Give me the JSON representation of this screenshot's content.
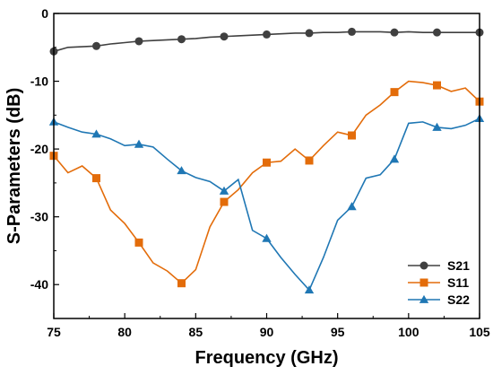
{
  "chart_data": {
    "type": "line",
    "title": "",
    "xlabel": "Frequency (GHz)",
    "ylabel": "S-Parameters (dB)",
    "xlim": [
      75,
      105
    ],
    "ylim": [
      -45,
      0
    ],
    "x_ticks": [
      "75",
      "80",
      "85",
      "90",
      "95",
      "100",
      "105"
    ],
    "y_ticks": [
      "0",
      "-10",
      "-20",
      "-30",
      "-40"
    ],
    "grid": false,
    "legend_position": "bottom-right",
    "series": [
      {
        "name": "S21",
        "color": "#404040",
        "marker": "circle",
        "x": [
          75,
          76,
          77,
          78,
          79,
          80,
          81,
          82,
          83,
          84,
          85,
          86,
          87,
          88,
          89,
          90,
          91,
          92,
          93,
          94,
          95,
          96,
          97,
          98,
          99,
          100,
          101,
          102,
          103,
          104,
          105
        ],
        "y": [
          -5.6,
          -5.0,
          -4.9,
          -4.8,
          -4.5,
          -4.3,
          -4.1,
          -4.0,
          -3.9,
          -3.8,
          -3.7,
          -3.5,
          -3.4,
          -3.3,
          -3.2,
          -3.1,
          -3.0,
          -2.9,
          -2.9,
          -2.8,
          -2.8,
          -2.7,
          -2.7,
          -2.7,
          -2.8,
          -2.7,
          -2.8,
          -2.8,
          -2.8,
          -2.8,
          -2.8
        ],
        "marker_x": [
          75,
          78,
          81,
          84,
          87,
          90,
          93,
          96,
          99,
          102,
          105
        ]
      },
      {
        "name": "S11",
        "color": "#e36c0a",
        "marker": "square",
        "x": [
          75,
          76,
          77,
          78,
          79,
          80,
          81,
          82,
          83,
          84,
          85,
          86,
          87,
          88,
          89,
          90,
          91,
          92,
          93,
          94,
          95,
          96,
          97,
          98,
          99,
          100,
          101,
          102,
          103,
          104,
          105
        ],
        "y": [
          -21.0,
          -23.5,
          -22.5,
          -24.3,
          -29.0,
          -31.0,
          -33.8,
          -36.8,
          -38.0,
          -39.8,
          -37.8,
          -31.5,
          -27.8,
          -26.0,
          -23.5,
          -22.0,
          -21.8,
          -20.0,
          -21.7,
          -19.5,
          -17.5,
          -18.0,
          -15.0,
          -13.5,
          -11.6,
          -10.0,
          -10.2,
          -10.6,
          -11.5,
          -11.0,
          -13.0
        ],
        "marker_x": [
          75,
          78,
          81,
          84,
          87,
          90,
          93,
          96,
          99,
          102,
          105
        ]
      },
      {
        "name": "S22",
        "color": "#1f77b4",
        "marker": "triangle",
        "x": [
          75,
          76,
          77,
          78,
          79,
          80,
          81,
          82,
          83,
          84,
          85,
          86,
          87,
          88,
          89,
          90,
          91,
          92,
          93,
          94,
          95,
          96,
          97,
          98,
          99,
          100,
          101,
          102,
          103,
          104,
          105
        ],
        "y": [
          -16.0,
          -16.8,
          -17.5,
          -17.8,
          -18.5,
          -19.5,
          -19.3,
          -19.7,
          -21.5,
          -23.2,
          -24.2,
          -24.8,
          -26.2,
          -24.5,
          -32.0,
          -33.2,
          -36.0,
          -38.5,
          -40.8,
          -36.0,
          -30.5,
          -28.5,
          -24.3,
          -23.8,
          -21.5,
          -16.2,
          -16.0,
          -16.8,
          -17.0,
          -16.5,
          -15.5
        ],
        "marker_x": [
          75,
          78,
          81,
          84,
          87,
          90,
          93,
          96,
          99,
          102,
          105
        ]
      }
    ]
  }
}
